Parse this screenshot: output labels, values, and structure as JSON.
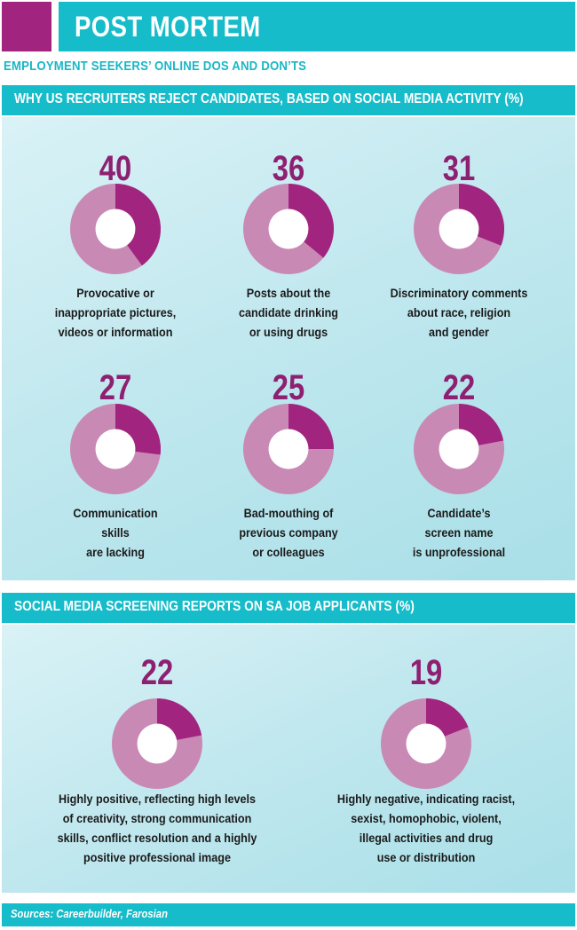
{
  "header": {
    "title": "POST MORTEM",
    "accent_color": "#a1247f",
    "bar_color": "#16bcc9"
  },
  "subheading": "EMPLOYMENT SEEKERS’ ONLINE DOS AND DON’TS",
  "sections": [
    {
      "title": "WHY US RECRUITERS REJECT CANDIDATES, BASED ON SOCIAL MEDIA ACTIVITY (%)"
    },
    {
      "title": "SOCIAL MEDIA SCREENING REPORTS ON SA JOB APPLICANTS (%)"
    }
  ],
  "chart_data": [
    {
      "type": "pie",
      "title": "WHY US RECRUITERS REJECT CANDIDATES, BASED ON SOCIAL MEDIA ACTIVITY (%)",
      "items": [
        {
          "value": 40,
          "label": "Provocative or\ninappropriate pictures,\nvideos or information"
        },
        {
          "value": 36,
          "label": "Posts about the\ncandidate drinking\nor using drugs"
        },
        {
          "value": 31,
          "label": "Discriminatory comments\nabout race, religion\nand gender"
        },
        {
          "value": 27,
          "label": "Communication\nskills\nare lacking"
        },
        {
          "value": 25,
          "label": "Bad-mouthing of\nprevious company\nor colleagues"
        },
        {
          "value": 22,
          "label": "Candidate’s\nscreen name\nis unprofessional"
        }
      ]
    },
    {
      "type": "pie",
      "title": "SOCIAL MEDIA SCREENING REPORTS ON SA JOB APPLICANTS (%)",
      "items": [
        {
          "value": 22,
          "label": "Highly positive, reflecting high levels\nof creativity, strong communication\nskills, conflict resolution and a highly\npositive professional image"
        },
        {
          "value": 19,
          "label": "Highly negative, indicating racist,\nsexist, homophobic, violent,\nillegal activities and drug\nuse or distribution"
        }
      ]
    }
  ],
  "colors": {
    "value_text": "#8e2071",
    "segment": "#a1247f",
    "remainder": "#c889b5",
    "donut_hole": "#ffffff"
  },
  "footer": {
    "sources": "Sources: Careerbuilder, Farosian"
  }
}
